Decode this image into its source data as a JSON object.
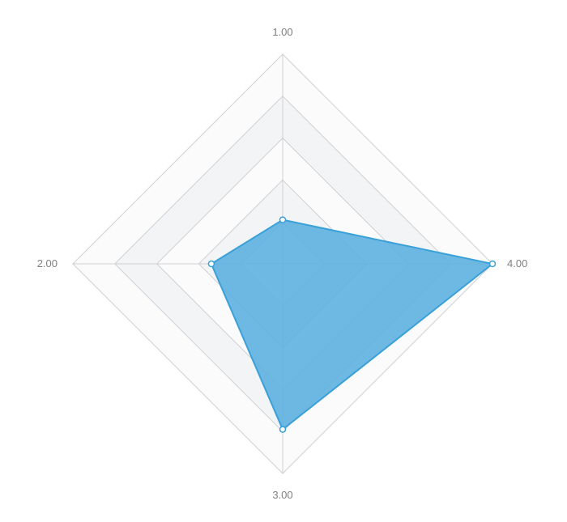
{
  "chart_data": {
    "type": "radar",
    "indicators": [
      "1.00",
      "2.00",
      "3.00",
      "4.00"
    ],
    "series": [
      {
        "values": [
          0.21,
          0.34,
          0.79,
          1.0
        ]
      }
    ],
    "range": [
      0,
      1
    ],
    "split_number": 5,
    "colors": {
      "series_fill": "#5aafdf",
      "series_line": "#3aa0d8",
      "point_fill": "#ffffff",
      "grid_line": "#d0d0d4",
      "band_light": "#fbfbfc",
      "band_shade": "#f3f4f6",
      "label_text": "#7f7f7f"
    }
  }
}
